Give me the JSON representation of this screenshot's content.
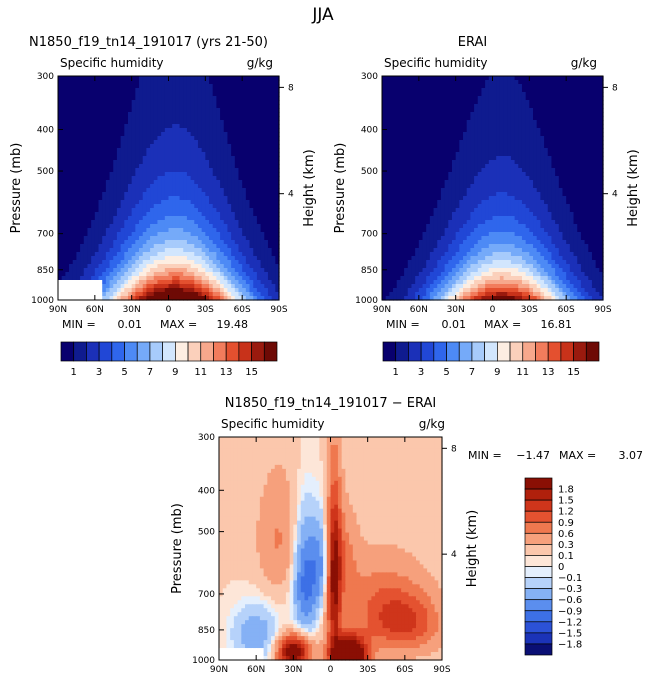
{
  "figure_title": "JJA",
  "colors": {
    "seq": [
      "#08006e",
      "#0f1b8f",
      "#1b30b8",
      "#2147d6",
      "#2f66ec",
      "#4d8af5",
      "#75aaf9",
      "#a7cbfb",
      "#d2e6fd",
      "#fdeee2",
      "#fbd0bb",
      "#f7a88c",
      "#f27c5c",
      "#e4502f",
      "#c8321a",
      "#9a1a0e",
      "#6e0a05"
    ],
    "div": [
      "#0a0f74",
      "#1b33b8",
      "#2c52d7",
      "#3d70e6",
      "#5b8eee",
      "#85b1f5",
      "#b6d2fa",
      "#e4effd",
      "#fde6d8",
      "#fbc7ac",
      "#f6a07c",
      "#ef784f",
      "#e45230",
      "#cf351b",
      "#b0200c",
      "#8a0f04"
    ],
    "mask": "#ffffff"
  },
  "chart_data": [
    {
      "type": "contour",
      "id": "model",
      "title": "N1850_f19_tn14_191017 (yrs 21-50)",
      "left_label": "Specific humidity",
      "right_label": "g/kg",
      "ylabel": "Pressure (mb)",
      "ylabel_right": "Height (km)",
      "xticks": [
        "90N",
        "60N",
        "30N",
        "0",
        "30S",
        "60S",
        "90S"
      ],
      "xlim": [
        -90,
        90
      ],
      "yticks": [
        "300",
        "400",
        "500",
        "700",
        "850",
        "1000"
      ],
      "ytick_values": [
        300,
        400,
        500,
        700,
        850,
        1000
      ],
      "ylim": [
        300,
        1000
      ],
      "height_ticks": [
        "8",
        "4"
      ],
      "height_values": [
        8,
        4
      ],
      "min_label": "MIN =",
      "min_value": "0.01",
      "max_label": "MAX =",
      "max_value": "19.48",
      "levels": [
        1,
        2,
        3,
        4,
        5,
        6,
        7,
        8,
        9,
        10,
        11,
        12,
        13,
        14,
        15,
        16
      ],
      "field": {
        "peak": 19.48,
        "peak_lat": -5,
        "width_lat": 58,
        "scale_height_mb": 265,
        "surface_mask": {
          "lat_from": 55,
          "lat_to": 90,
          "p_from": 900
        }
      }
    },
    {
      "type": "contour",
      "id": "erai",
      "title": "ERAI",
      "left_label": "Specific humidity",
      "right_label": "g/kg",
      "ylabel": "Pressure (mb)",
      "ylabel_right": "Height (km)",
      "xticks": [
        "90N",
        "60N",
        "30N",
        "0",
        "30S",
        "60S",
        "90S"
      ],
      "xlim": [
        -90,
        90
      ],
      "yticks": [
        "300",
        "400",
        "500",
        "700",
        "850",
        "1000"
      ],
      "ytick_values": [
        300,
        400,
        500,
        700,
        850,
        1000
      ],
      "ylim": [
        300,
        1000
      ],
      "height_ticks": [
        "8",
        "4"
      ],
      "height_values": [
        8,
        4
      ],
      "min_label": "MIN =",
      "min_value": "0.01",
      "max_label": "MAX =",
      "max_value": "16.81",
      "levels": [
        1,
        2,
        3,
        4,
        5,
        6,
        7,
        8,
        9,
        10,
        11,
        12,
        13,
        14,
        15,
        16
      ],
      "field": {
        "peak": 16.81,
        "peak_lat": -8,
        "width_lat": 55,
        "scale_height_mb": 250
      }
    },
    {
      "type": "contour",
      "id": "diff",
      "title": "N1850_f19_tn14_191017 − ERAI",
      "left_label": "Specific humidity",
      "right_label": "g/kg",
      "ylabel": "Pressure (mb)",
      "ylabel_right": "Height (km)",
      "xticks": [
        "90N",
        "60N",
        "30N",
        "0",
        "30S",
        "60S",
        "90S"
      ],
      "xlim": [
        -90,
        90
      ],
      "yticks": [
        "300",
        "400",
        "500",
        "700",
        "850",
        "1000"
      ],
      "ytick_values": [
        300,
        400,
        500,
        700,
        850,
        1000
      ],
      "ylim": [
        300,
        1000
      ],
      "height_ticks": [
        "8",
        "4"
      ],
      "height_values": [
        8,
        4
      ],
      "min_label": "MIN =",
      "min_value": "−1.47",
      "max_label": "MAX =",
      "max_value": "3.07",
      "levels": [
        -1.8,
        -1.5,
        -1.2,
        -0.9,
        -0.6,
        -0.3,
        -0.1,
        0,
        0.1,
        0.3,
        0.6,
        0.9,
        1.2,
        1.5,
        1.8
      ],
      "field": {
        "blobs": [
          {
            "lat": -15,
            "p": 980,
            "amp": 3.07,
            "dlat": 10,
            "dp": 70
          },
          {
            "lat": 30,
            "p": 960,
            "amp": 2.2,
            "dlat": 9,
            "dp": 60
          },
          {
            "lat": -3,
            "p": 650,
            "amp": 1.6,
            "dlat": 4,
            "dp": 220
          },
          {
            "lat": -60,
            "p": 820,
            "amp": 1.0,
            "dlat": 20,
            "dp": 90
          },
          {
            "lat": -40,
            "p": 720,
            "amp": 0.6,
            "dlat": 25,
            "dp": 120
          },
          {
            "lat": 20,
            "p": 650,
            "amp": -1.2,
            "dlat": 7,
            "dp": 140
          },
          {
            "lat": 60,
            "p": 870,
            "amp": -0.6,
            "dlat": 14,
            "dp": 100
          },
          {
            "lat": 42,
            "p": 520,
            "amp": 0.5,
            "dlat": 12,
            "dp": 120
          },
          {
            "lat": 8,
            "p": 600,
            "amp": -0.7,
            "dlat": 5,
            "dp": 100
          },
          {
            "lat": -10,
            "p": 560,
            "amp": 0.5,
            "dlat": 8,
            "dp": 100
          }
        ],
        "background": 0.12,
        "surface_mask": {
          "lat_from": 55,
          "lat_to": 90,
          "p_from": 930
        }
      }
    }
  ],
  "colorbar_seq": {
    "labels": [
      "1",
      "3",
      "5",
      "7",
      "9",
      "11",
      "13",
      "15"
    ]
  },
  "colorbar_div": {
    "labels": [
      "1.8",
      "1.5",
      "1.2",
      "0.9",
      "0.6",
      "0.3",
      "0.1",
      "0",
      "−0.1",
      "−0.3",
      "−0.6",
      "−0.9",
      "−1.2",
      "−1.5",
      "−1.8"
    ]
  }
}
